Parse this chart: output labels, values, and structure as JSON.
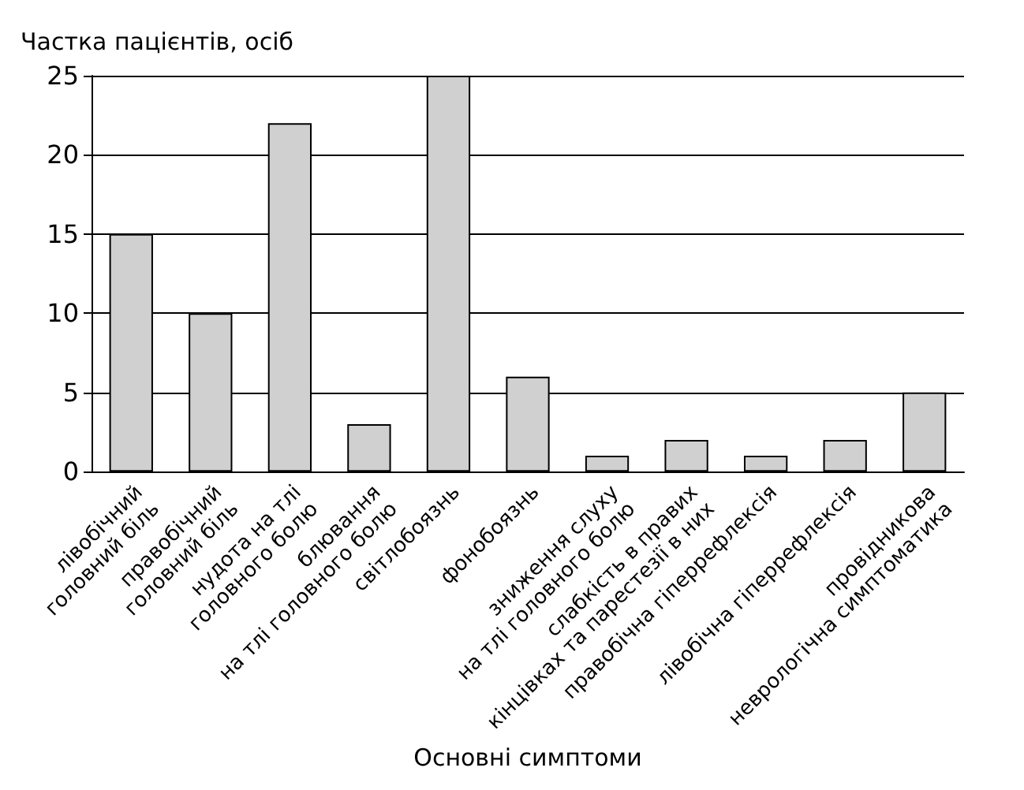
{
  "chart_data": {
    "type": "bar",
    "xlabel": "Основні симптоми",
    "ylabel": "Частка пацієнтів, осіб",
    "categories": [
      "лівобічний\nголовний біль",
      "правобічний\nголовний біль",
      "нудота на тлі\nголовного болю",
      "блювання\nна тлі головного болю",
      "світлобоязнь",
      "фонобоязнь",
      "зниження слуху\nна тлі головного болю",
      "слабкість в правих\nкінцівках та парестезії в них",
      "правобічна гіперрефлексія",
      "лівобічна гіперрефлексія",
      "провідникова\nневрологічна симптоматика"
    ],
    "values": [
      15,
      10,
      22,
      3,
      25,
      6,
      1,
      2,
      1,
      2,
      5
    ],
    "color": "#d0d0d0",
    "ylim": [
      0,
      25
    ],
    "yticks": [
      0,
      5,
      10,
      15,
      20,
      25
    ],
    "grid": "y"
  }
}
